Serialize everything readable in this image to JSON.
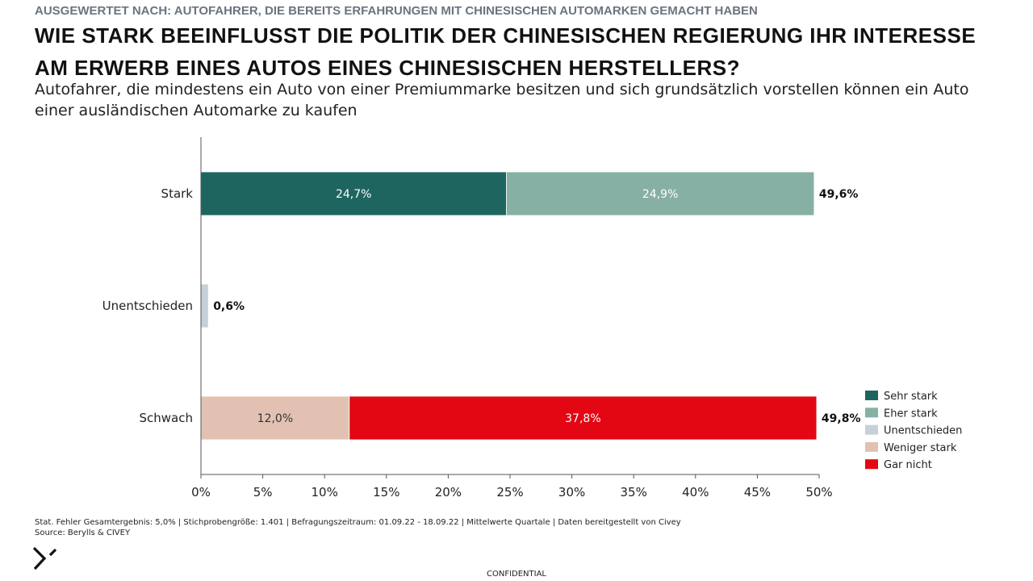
{
  "header": {
    "kicker": "AUSGEWERTET NACH: AUTOFAHRER, DIE BEREITS ERFAHRUNGEN MIT CHINESISCHEN AUTOMARKEN GEMACHT HABEN",
    "title": "WIE STARK BEEINFLUSST DIE POLITIK DER CHINESISCHEN REGIERUNG IHR INTERESSE AM ERWERB EINES AUTOS EINES CHINESISCHEN HERSTELLERS?",
    "subtitle": "Autofahrer, die mindestens ein Auto von einer Premiummarke besitzen und sich grundsätzlich vorstellen können ein Auto einer ausländischen Automarke zu kaufen"
  },
  "chart_data": {
    "type": "bar",
    "orientation": "horizontal",
    "stacked": true,
    "categories": [
      "Stark",
      "Unentschieden",
      "Schwach"
    ],
    "series": [
      {
        "name": "Sehr stark",
        "color": "#1e6560",
        "values": [
          24.7,
          0,
          0
        ],
        "labels": [
          "24,7%",
          "",
          ""
        ]
      },
      {
        "name": "Eher stark",
        "color": "#87b0a5",
        "values": [
          24.9,
          0,
          0
        ],
        "labels": [
          "24,9%",
          "",
          ""
        ]
      },
      {
        "name": "Unentschieden",
        "color": "#c5d0d8",
        "values": [
          0,
          0.6,
          0
        ],
        "labels": [
          "",
          "",
          ""
        ]
      },
      {
        "name": "Weniger stark",
        "color": "#e2c1b3",
        "values": [
          0,
          0,
          12.0
        ],
        "labels": [
          "",
          "",
          "12,0%"
        ]
      },
      {
        "name": "Gar nicht",
        "color": "#e30613",
        "values": [
          0,
          0,
          37.8
        ],
        "labels": [
          "",
          "",
          "37,8%"
        ]
      }
    ],
    "totals": [
      "49,6%",
      "0,6%",
      "49,8%"
    ],
    "xlim": [
      0,
      50
    ],
    "x_ticks": [
      "0%",
      "5%",
      "10%",
      "15%",
      "20%",
      "25%",
      "30%",
      "35%",
      "40%",
      "45%",
      "50%"
    ],
    "grid": false,
    "legend_position": "bottom-right",
    "legend": [
      "Sehr stark",
      "Eher stark",
      "Unentschieden",
      "Weniger stark",
      "Gar nicht"
    ]
  },
  "footer": {
    "note": "Stat. Fehler Gesamtergebnis: 5,0% | Stichprobengröße: 1.401 | Befragungszeitraum: 01.09.22 - 18.09.22 | Mittelwerte Quartale | Daten bereitgestellt von Civey",
    "source": "Source: Berylls & CIVEY",
    "confidential": "CONFIDENTIAL"
  }
}
